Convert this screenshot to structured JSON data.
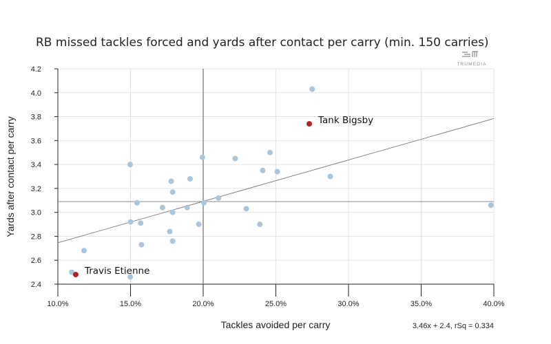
{
  "chart_data": {
    "type": "scatter",
    "title": "RB missed tackles forced and yards after contact per carry (min. 150 carries)",
    "xlabel": "Tackles avoided per carry",
    "ylabel": "Yards after contact per carry",
    "xlim": [
      0.1,
      0.4
    ],
    "ylim": [
      2.4,
      4.2
    ],
    "xticks": [
      0.1,
      0.15,
      0.2,
      0.25,
      0.3,
      0.35,
      0.4
    ],
    "xtick_labels": [
      "10.0%",
      "15.0%",
      "20.0%",
      "25.0%",
      "30.0%",
      "35.0%",
      "40.0%"
    ],
    "yticks": [
      2.4,
      2.6,
      2.8,
      3.0,
      3.2,
      3.4,
      3.6,
      3.8,
      4.0,
      4.2
    ],
    "ytick_labels": [
      "2.4",
      "2.6",
      "2.8",
      "3.0",
      "3.2",
      "3.4",
      "3.6",
      "3.8",
      "4.0",
      "4.2"
    ],
    "grid": true,
    "mean_x": 0.2,
    "mean_y": 3.09,
    "trendline": {
      "slope": 3.46,
      "intercept": 2.4,
      "label": "3.46x + 2.4, rSq = 0.334"
    },
    "points": [
      {
        "x": 0.1095,
        "y": 2.5
      },
      {
        "x": 0.118,
        "y": 2.68
      },
      {
        "x": 0.1498,
        "y": 3.4
      },
      {
        "x": 0.1498,
        "y": 2.46
      },
      {
        "x": 0.15,
        "y": 2.92
      },
      {
        "x": 0.1545,
        "y": 3.08
      },
      {
        "x": 0.157,
        "y": 2.91
      },
      {
        "x": 0.1575,
        "y": 2.73
      },
      {
        "x": 0.172,
        "y": 3.04
      },
      {
        "x": 0.177,
        "y": 2.84
      },
      {
        "x": 0.178,
        "y": 3.26
      },
      {
        "x": 0.179,
        "y": 3.17
      },
      {
        "x": 0.179,
        "y": 3.0
      },
      {
        "x": 0.179,
        "y": 2.76
      },
      {
        "x": 0.189,
        "y": 3.04
      },
      {
        "x": 0.191,
        "y": 3.28
      },
      {
        "x": 0.197,
        "y": 2.9
      },
      {
        "x": 0.1995,
        "y": 3.46
      },
      {
        "x": 0.2005,
        "y": 3.08
      },
      {
        "x": 0.2105,
        "y": 3.12
      },
      {
        "x": 0.222,
        "y": 3.45
      },
      {
        "x": 0.2297,
        "y": 3.03
      },
      {
        "x": 0.239,
        "y": 2.9
      },
      {
        "x": 0.241,
        "y": 3.35
      },
      {
        "x": 0.246,
        "y": 3.5
      },
      {
        "x": 0.251,
        "y": 3.34
      },
      {
        "x": 0.275,
        "y": 4.03
      },
      {
        "x": 0.2875,
        "y": 3.3
      },
      {
        "x": 0.398,
        "y": 3.06
      }
    ],
    "highlighted": [
      {
        "name": "Travis Etienne",
        "x": 0.1123,
        "y": 2.48
      },
      {
        "name": "Tank Bigsby",
        "x": 0.273,
        "y": 3.74
      }
    ],
    "colors": {
      "point": "#a9c6dc",
      "highlight": "#b22222",
      "grid": "#e3e3e3",
      "mean": "#888888",
      "trend": "#777777"
    }
  },
  "logo": "TRUMEDIA"
}
